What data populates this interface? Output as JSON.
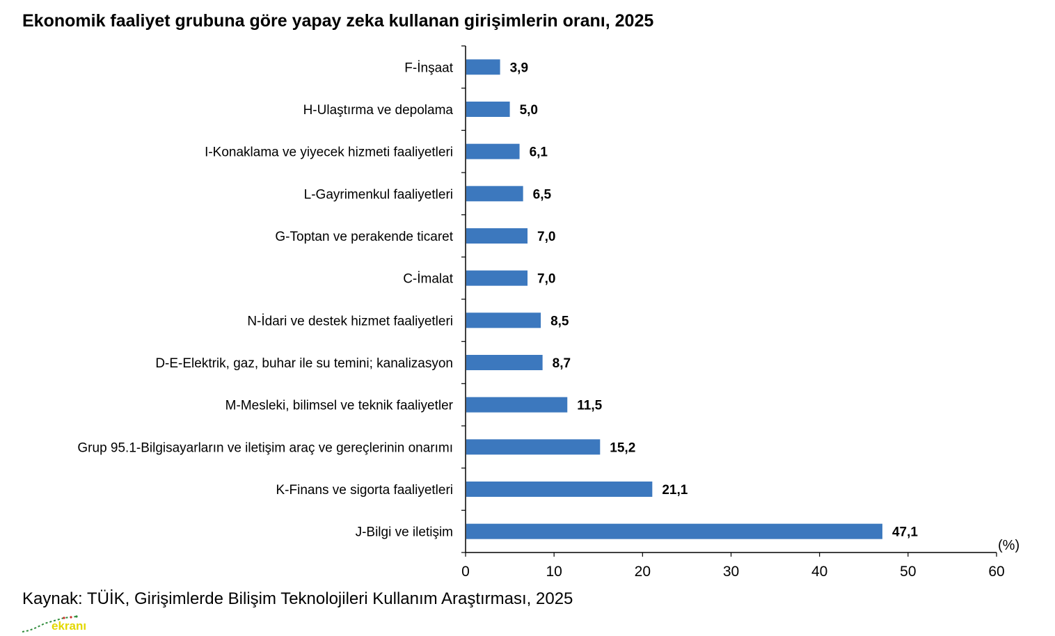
{
  "chart_data": {
    "type": "bar",
    "orientation": "horizontal",
    "title": "Ekonomik faaliyet grubuna göre yapay zeka kullanan girişimlerin oranı, 2025",
    "categories": [
      "F-İnşaat",
      "H-Ulaştırma ve depolama",
      "I-Konaklama ve yiyecek hizmeti faaliyetleri",
      "L-Gayrimenkul faaliyetleri",
      "G-Toptan ve perakende ticaret",
      "C-İmalat",
      "N-İdari ve destek hizmet faaliyetleri",
      "D-E-Elektrik, gaz, buhar ile su temini; kanalizasyon",
      "M-Mesleki, bilimsel ve teknik faaliyetler",
      "Grup 95.1-Bilgisayarların ve iletişim araç ve gereçlerinin onarımı",
      "K-Finans ve sigorta faaliyetleri",
      "J-Bilgi ve iletişim"
    ],
    "values": [
      3.9,
      5.0,
      6.1,
      6.5,
      7.0,
      7.0,
      8.5,
      8.7,
      11.5,
      15.2,
      21.1,
      47.1
    ],
    "value_labels": [
      "3,9",
      "5,0",
      "6,1",
      "6,5",
      "7,0",
      "7,0",
      "8,5",
      "8,7",
      "11,5",
      "15,2",
      "21,1",
      "47,1"
    ],
    "xlim": [
      0,
      60
    ],
    "x_ticks": [
      0,
      10,
      20,
      30,
      40,
      50,
      60
    ],
    "x_unit_label": "(%)",
    "grid": false,
    "bar_color": "#3c78be"
  },
  "source": "Kaynak: TÜİK, Girişimlerde Bilişim Teknolojileri Kullanım Araştırması, 2025",
  "watermark_text": "ekranı"
}
